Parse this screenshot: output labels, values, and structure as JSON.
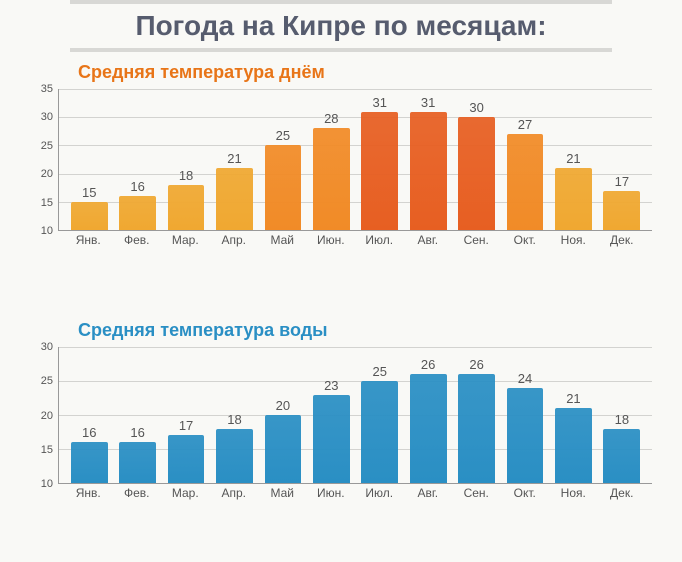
{
  "page_title": "Погода на Кипре по месяцам:",
  "categories": [
    "Янв.",
    "Фев.",
    "Мар.",
    "Апр.",
    "Май",
    "Июн.",
    "Июл.",
    "Авг.",
    "Сен.",
    "Окт.",
    "Ноя.",
    "Дек."
  ],
  "day_chart": {
    "title": "Средняя температура днём",
    "title_color": "#e87518",
    "type": "bar",
    "values": [
      15,
      16,
      18,
      21,
      25,
      28,
      31,
      31,
      30,
      27,
      21,
      17
    ],
    "bar_colors": [
      "#f0a831",
      "#f0a831",
      "#f0a831",
      "#f0a831",
      "#f18b27",
      "#f18b27",
      "#e75f22",
      "#e75f22",
      "#e75f22",
      "#f18b27",
      "#f0a831",
      "#f0a831"
    ],
    "ymin": 10,
    "ymax": 35,
    "ytick_step": 5,
    "grid_color": "#d3d3d0",
    "label_fontsize": 13,
    "tick_fontsize": 11
  },
  "water_chart": {
    "title": "Средняя температура воды",
    "title_color": "#2a8fc4",
    "type": "bar",
    "values": [
      16,
      16,
      17,
      18,
      20,
      23,
      25,
      26,
      26,
      24,
      21,
      18
    ],
    "bar_colors": [
      "#2a8fc4",
      "#2a8fc4",
      "#2a8fc4",
      "#2a8fc4",
      "#2a8fc4",
      "#2a8fc4",
      "#2a8fc4",
      "#2a8fc4",
      "#2a8fc4",
      "#2a8fc4",
      "#2a8fc4",
      "#2a8fc4"
    ],
    "ymin": 10,
    "ymax": 30,
    "ytick_step": 5,
    "grid_color": "#d3d3d0",
    "label_fontsize": 13,
    "tick_fontsize": 11
  },
  "background_color": "#f9f9f6"
}
